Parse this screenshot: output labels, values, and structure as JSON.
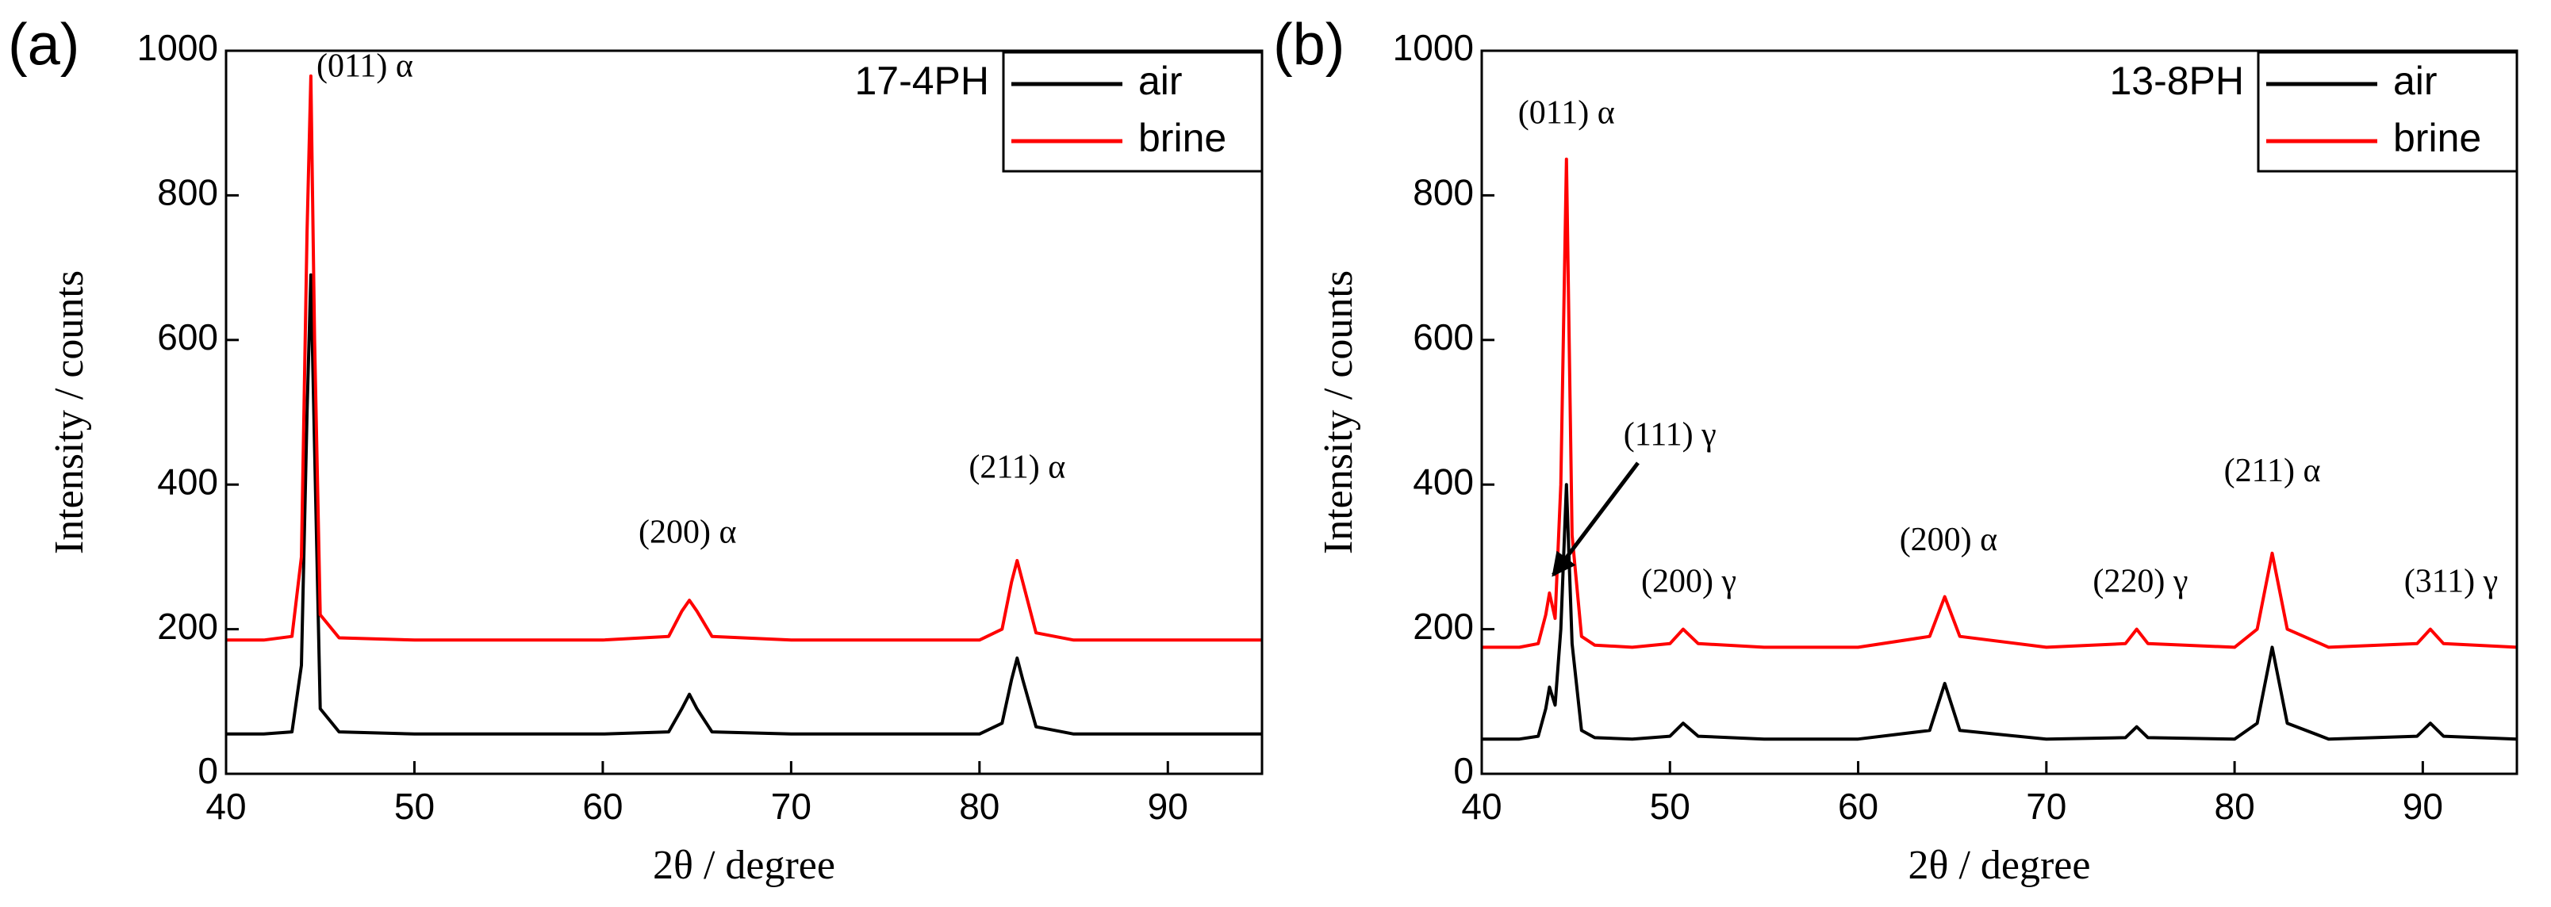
{
  "chart_data": [
    {
      "type": "line",
      "panel_label": "(a)",
      "legend_title": "17-4PH",
      "x_label": "2θ / degree",
      "y_label": "Intensity / counts",
      "xlim": [
        40,
        95
      ],
      "ylim": [
        0,
        1000
      ],
      "xticks": [
        40,
        50,
        60,
        70,
        80,
        90
      ],
      "yticks": [
        0,
        200,
        400,
        600,
        800,
        1000
      ],
      "legend": "upper right",
      "x": [
        40,
        42,
        43.5,
        44,
        44.3,
        44.5,
        44.7,
        45,
        46,
        50,
        55,
        60,
        63.5,
        64.2,
        64.6,
        65,
        65.8,
        70,
        75,
        80,
        81.2,
        81.7,
        82,
        82.3,
        83,
        85,
        90,
        95
      ],
      "series": [
        {
          "name": "air",
          "color": "#000000",
          "values": [
            55,
            55,
            58,
            150,
            500,
            690,
            450,
            90,
            58,
            55,
            55,
            55,
            58,
            90,
            110,
            90,
            58,
            55,
            55,
            55,
            70,
            130,
            160,
            130,
            65,
            55,
            55,
            55
          ]
        },
        {
          "name": "brine",
          "color": "#ff0000",
          "values": [
            185,
            185,
            190,
            300,
            750,
            965,
            600,
            220,
            188,
            185,
            185,
            185,
            190,
            225,
            240,
            225,
            190,
            185,
            185,
            185,
            200,
            265,
            295,
            265,
            195,
            185,
            185,
            185
          ]
        }
      ],
      "annotations": [
        "(011) α",
        "(200) α",
        "(211) α"
      ]
    },
    {
      "type": "line",
      "panel_label": "(b)",
      "legend_title": "13-8PH",
      "x_label": "2θ / degree",
      "y_label": "Intensity / counts",
      "xlim": [
        40,
        95
      ],
      "ylim": [
        0,
        1000
      ],
      "xticks": [
        40,
        50,
        60,
        70,
        80,
        90
      ],
      "yticks": [
        0,
        200,
        400,
        600,
        800,
        1000
      ],
      "legend": "upper right",
      "x": [
        40,
        42,
        43,
        43.4,
        43.6,
        43.9,
        44.2,
        44.5,
        44.8,
        45.3,
        46,
        48,
        50,
        50.7,
        51.5,
        55,
        60,
        63.8,
        64.6,
        65.4,
        70,
        74.2,
        74.8,
        75.4,
        80,
        81.2,
        82,
        82.8,
        85,
        89.7,
        90.4,
        91.1,
        95
      ],
      "series": [
        {
          "name": "air",
          "color": "#000000",
          "values": [
            48,
            48,
            52,
            90,
            120,
            95,
            200,
            400,
            180,
            60,
            50,
            48,
            52,
            70,
            52,
            48,
            48,
            60,
            125,
            60,
            48,
            50,
            65,
            50,
            48,
            70,
            175,
            70,
            48,
            52,
            70,
            52,
            48
          ]
        },
        {
          "name": "brine",
          "color": "#ff0000",
          "values": [
            175,
            175,
            180,
            220,
            250,
            215,
            400,
            850,
            330,
            190,
            178,
            175,
            180,
            200,
            180,
            175,
            175,
            190,
            245,
            190,
            175,
            180,
            200,
            180,
            175,
            200,
            305,
            200,
            175,
            180,
            200,
            180,
            175
          ]
        }
      ],
      "annotations": [
        "(011) α",
        "(111) γ",
        "(200) γ",
        "(200) α",
        "(220) γ",
        "(211) α",
        "(311) γ"
      ]
    }
  ]
}
